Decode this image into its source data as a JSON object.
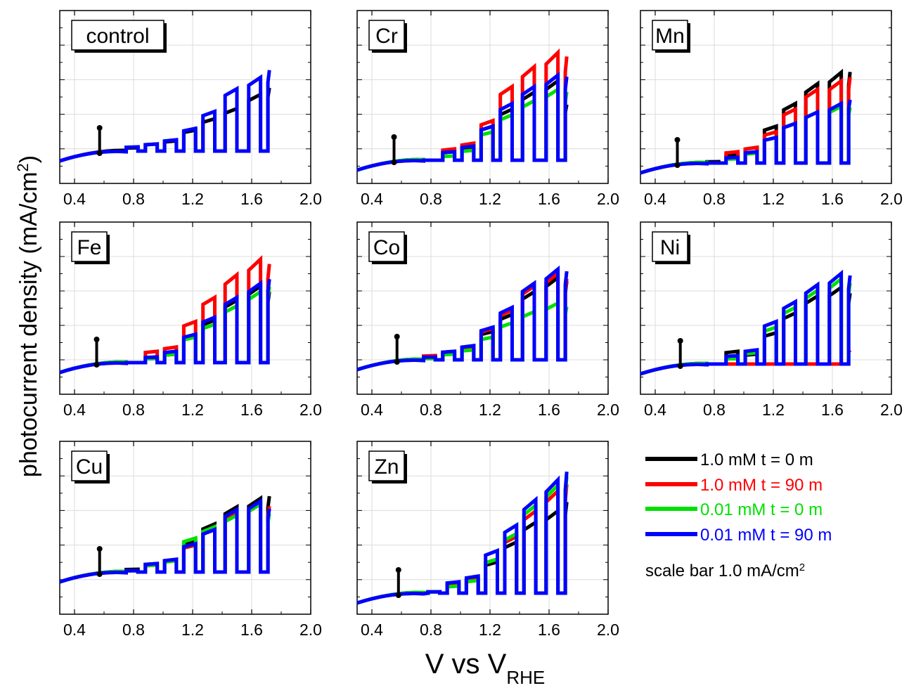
{
  "figure": {
    "ylabel_main": "photocurrent density (mA/cm",
    "ylabel_sup": "2",
    "ylabel_close": ")",
    "xlabel_main": "V vs V",
    "xlabel_sub": "RHE"
  },
  "legend": {
    "entries": [
      {
        "label": "1.0 mM t = 0 m",
        "color": "#000000"
      },
      {
        "label": "1.0 mM t = 90 m",
        "color": "#ff0000"
      },
      {
        "label": "0.01 mM t = 0 m",
        "color": "#00e000"
      },
      {
        "label": "0.01 mM t = 90 m",
        "color": "#0000ff"
      }
    ],
    "scale_note": "scale bar 1.0 mA/cm",
    "scale_note_sup": "2"
  },
  "colors": {
    "c1": "#000000",
    "c2": "#ff0000",
    "c3": "#00e000",
    "c4": "#0000ff"
  },
  "chart_data": [
    {
      "type": "line",
      "title": "control",
      "xlim": [
        0.3,
        2.0
      ],
      "x_ticks": [
        "0.4",
        "0.8",
        "1.2",
        "1.6",
        "2.0"
      ],
      "grid": true,
      "pulse_potentials_V": [
        0.68,
        0.86,
        0.98,
        1.1,
        1.26,
        1.42,
        1.58
      ],
      "series": [
        {
          "name": "1.0 mM t = 0 m",
          "pulse_heights": [
            0.12,
            0.25,
            0.36,
            0.74,
            1.14,
            1.5,
            2.0
          ],
          "end_V": 1.72,
          "end_value": 2.5
        },
        {
          "name": "0.01 mM t = 90 m",
          "pulse_heights": [
            0.15,
            0.25,
            0.4,
            0.8,
            1.4,
            2.2,
            2.6
          ],
          "end_V": 1.72,
          "end_value": 3.2
        }
      ]
    },
    {
      "type": "line",
      "title": "Cr",
      "xlim": [
        0.3,
        2.0
      ],
      "x_ticks": [
        "0.4",
        "0.8",
        "1.2",
        "1.6",
        "2.0"
      ],
      "grid": true,
      "pulse_potentials_V": [
        0.62,
        0.86,
        0.98,
        1.1,
        1.26,
        1.42,
        1.58
      ],
      "series": [
        {
          "name": "1.0 mM t = 0 m",
          "pulse_heights": [
            0.0,
            0.3,
            0.45,
            1.2,
            1.8,
            2.4,
            2.8
          ],
          "end_V": 1.72,
          "end_value": 2.2
        },
        {
          "name": "1.0 mM t = 90 m",
          "pulse_heights": [
            0.0,
            0.4,
            0.6,
            1.4,
            2.6,
            3.3,
            3.8
          ],
          "end_V": 1.72,
          "end_value": 4.1
        },
        {
          "name": "0.01 mM t = 0 m",
          "pulse_heights": [
            0.0,
            0.15,
            0.35,
            1.0,
            1.6,
            2.1,
            2.5
          ],
          "end_V": 1.72,
          "end_value": 2.7
        },
        {
          "name": "0.01 mM t = 90 m",
          "pulse_heights": [
            0.0,
            0.3,
            0.5,
            1.2,
            2.0,
            2.6,
            3.0
          ],
          "end_V": 1.72,
          "end_value": 3.3
        }
      ],
      "scale_bar_V": 0.55
    },
    {
      "type": "line",
      "title": "Mn",
      "xlim": [
        0.3,
        2.0
      ],
      "x_ticks": [
        "0.4",
        "0.8",
        "1.2",
        "1.6",
        "2.0"
      ],
      "grid": true,
      "pulse_potentials_V": [
        0.62,
        0.86,
        0.98,
        1.1,
        1.26,
        1.42,
        1.58
      ],
      "series": [
        {
          "name": "1.0 mM t = 0 m",
          "pulse_heights": [
            0.05,
            0.3,
            0.55,
            1.3,
            2.1,
            2.8,
            3.2
          ],
          "end_V": 1.72,
          "end_value": 3.6
        },
        {
          "name": "1.0 mM t = 90 m",
          "pulse_heights": [
            0.0,
            0.4,
            0.55,
            1.1,
            1.9,
            2.6,
            2.9
          ],
          "end_V": 1.72,
          "end_value": 3.4
        },
        {
          "name": "0.01 mM t = 0 m",
          "pulse_heights": [
            0.0,
            0.15,
            0.35,
            0.9,
            1.4,
            1.8,
            2.0
          ],
          "end_V": 1.72,
          "end_value": 2.2
        },
        {
          "name": "0.01 mM t = 90 m",
          "pulse_heights": [
            0.0,
            0.2,
            0.4,
            0.9,
            1.4,
            1.8,
            2.1
          ],
          "end_V": 1.72,
          "end_value": 2.5
        }
      ],
      "scale_bar_V": 0.55
    },
    {
      "type": "line",
      "title": "Fe",
      "xlim": [
        0.3,
        2.0
      ],
      "x_ticks": [
        "0.4",
        "0.8",
        "1.2",
        "1.6",
        "2.0"
      ],
      "grid": true,
      "pulse_potentials_V": [
        0.7,
        0.86,
        0.98,
        1.1,
        1.26,
        1.42,
        1.58
      ],
      "series": [
        {
          "name": "1.0 mM t = 0 m",
          "pulse_heights": [
            0.0,
            0.15,
            0.3,
            0.95,
            1.5,
            2.2,
            2.7
          ],
          "end_V": 1.72,
          "end_value": 2.8
        },
        {
          "name": "1.0 mM t = 90 m",
          "pulse_heights": [
            0.0,
            0.4,
            0.55,
            1.45,
            2.3,
            3.1,
            3.65
          ],
          "end_V": 1.72,
          "end_value": 3.9
        },
        {
          "name": "0.01 mM t = 0 m",
          "pulse_heights": [
            0.0,
            0.15,
            0.3,
            0.9,
            1.35,
            2.0,
            2.5
          ],
          "end_V": 1.72,
          "end_value": 3.0
        },
        {
          "name": "0.01 mM t = 90 m",
          "pulse_heights": [
            0.0,
            0.2,
            0.4,
            1.0,
            1.6,
            2.3,
            2.8
          ],
          "end_V": 1.72,
          "end_value": 3.3
        }
      ],
      "scale_bar_V": 0.55
    },
    {
      "type": "line",
      "title": "Co",
      "xlim": [
        0.3,
        2.0
      ],
      "x_ticks": [
        "0.4",
        "0.8",
        "1.2",
        "1.6",
        "2.0"
      ],
      "grid": true,
      "pulse_potentials_V": [
        0.7,
        0.86,
        0.98,
        1.1,
        1.26,
        1.42,
        1.58
      ],
      "series": [
        {
          "name": "1.0 mM t = 0 m",
          "pulse_heights": [
            0.05,
            0.25,
            0.4,
            1.0,
            1.6,
            2.4,
            2.9
          ],
          "end_V": 1.72,
          "end_value": 3.1
        },
        {
          "name": "1.0 mM t = 90 m",
          "pulse_heights": [
            0.15,
            0.3,
            0.45,
            1.1,
            1.75,
            2.6,
            3.05
          ],
          "end_V": 1.72,
          "end_value": 3.2
        },
        {
          "name": "0.01 mM t = 0 m",
          "pulse_heights": [
            0.05,
            0.2,
            0.35,
            0.8,
            1.3,
            1.7,
            2.0
          ],
          "end_V": 1.72,
          "end_value": 2.1
        },
        {
          "name": "0.01 mM t = 90 m",
          "pulse_heights": [
            0.1,
            0.3,
            0.5,
            1.15,
            1.85,
            2.7,
            3.2
          ],
          "end_V": 1.72,
          "end_value": 3.5
        }
      ],
      "scale_bar_V": 0.57
    },
    {
      "type": "line",
      "title": "Ni",
      "xlim": [
        0.3,
        2.0
      ],
      "x_ticks": [
        "0.4",
        "0.8",
        "1.2",
        "1.6",
        "2.0"
      ],
      "grid": true,
      "pulse_potentials_V": [
        0.74,
        0.86,
        0.98,
        1.1,
        1.26,
        1.42,
        1.58
      ],
      "series": [
        {
          "name": "1.0 mM t = 0 m",
          "pulse_heights": [
            0.0,
            0.45,
            0.35,
            1.1,
            1.8,
            2.4,
            2.7
          ],
          "end_V": 1.72,
          "end_value": 2.8
        },
        {
          "name": "1.0 mM t = 90 m",
          "pulse_heights": [
            0.0,
            0.0,
            0.0,
            0.0,
            0.0,
            0.0,
            0.0
          ],
          "end_V": 1.72,
          "end_value": 0.55
        },
        {
          "name": "0.01 mM t = 0 m",
          "pulse_heights": [
            0.0,
            0.2,
            0.4,
            1.3,
            2.0,
            2.6,
            3.0
          ],
          "end_V": 1.72,
          "end_value": 3.2
        },
        {
          "name": "0.01 mM t = 90 m",
          "pulse_heights": [
            0.0,
            0.3,
            0.5,
            1.5,
            2.2,
            2.8,
            3.2
          ],
          "end_V": 1.72,
          "end_value": 3.5
        }
      ],
      "scale_bar_V": 0.57
    },
    {
      "type": "line",
      "title": "Cu",
      "xlim": [
        0.3,
        2.0
      ],
      "x_ticks": [
        "0.4",
        "0.8",
        "1.2",
        "1.6",
        "2.0"
      ],
      "grid": true,
      "pulse_potentials_V": [
        0.7,
        0.86,
        0.98,
        1.1,
        1.26,
        1.42,
        1.58
      ],
      "series": [
        {
          "name": "1.0 mM t = 0 m",
          "pulse_heights": [
            0.1,
            0.3,
            0.45,
            1.1,
            1.7,
            2.3,
            2.6
          ],
          "end_V": 1.72,
          "end_value": 3.0
        },
        {
          "name": "1.0 mM t = 90 m",
          "pulse_heights": [
            0.05,
            0.25,
            0.4,
            0.95,
            1.5,
            2.1,
            2.4
          ],
          "end_V": 1.72,
          "end_value": 2.6
        },
        {
          "name": "0.01 mM t = 0 m",
          "pulse_heights": [
            0.05,
            0.25,
            0.4,
            1.2,
            1.6,
            2.0,
            2.4
          ],
          "end_V": 1.72,
          "end_value": 2.3
        },
        {
          "name": "0.01 mM t = 90 m",
          "pulse_heights": [
            0.05,
            0.3,
            0.45,
            1.0,
            1.5,
            2.2,
            2.5
          ],
          "end_V": 1.72,
          "end_value": 2.5
        }
      ],
      "scale_bar_V": 0.57
    },
    {
      "type": "line",
      "title": "Zn",
      "xlim": [
        0.3,
        2.0
      ],
      "x_ticks": [
        "0.4",
        "0.8",
        "1.2",
        "1.6",
        "2.0"
      ],
      "grid": true,
      "pulse_potentials_V": [
        0.78,
        0.9,
        1.0,
        1.1,
        1.26,
        1.42,
        1.58
      ],
      "series": [
        {
          "name": "1.0 mM t = 0 m",
          "pulse_heights": [
            0.05,
            0.3,
            0.5,
            1.1,
            1.8,
            2.5,
            2.9
          ],
          "end_V": 1.72,
          "end_value": 3.6
        },
        {
          "name": "1.0 mM t = 90 m",
          "pulse_heights": [
            0.05,
            0.3,
            0.5,
            1.2,
            2.0,
            2.9,
            3.6
          ],
          "end_V": 1.72,
          "end_value": 4.3
        },
        {
          "name": "0.01 mM t = 0 m",
          "pulse_heights": [
            0.05,
            0.25,
            0.45,
            1.2,
            2.1,
            3.1,
            3.8
          ],
          "end_V": 1.72,
          "end_value": 4.6
        },
        {
          "name": "0.01 mM t = 90 m",
          "pulse_heights": [
            0.05,
            0.4,
            0.6,
            1.5,
            2.4,
            3.3,
            4.0
          ],
          "end_V": 1.72,
          "end_value": 4.8
        }
      ],
      "scale_bar_V": 0.58
    }
  ]
}
